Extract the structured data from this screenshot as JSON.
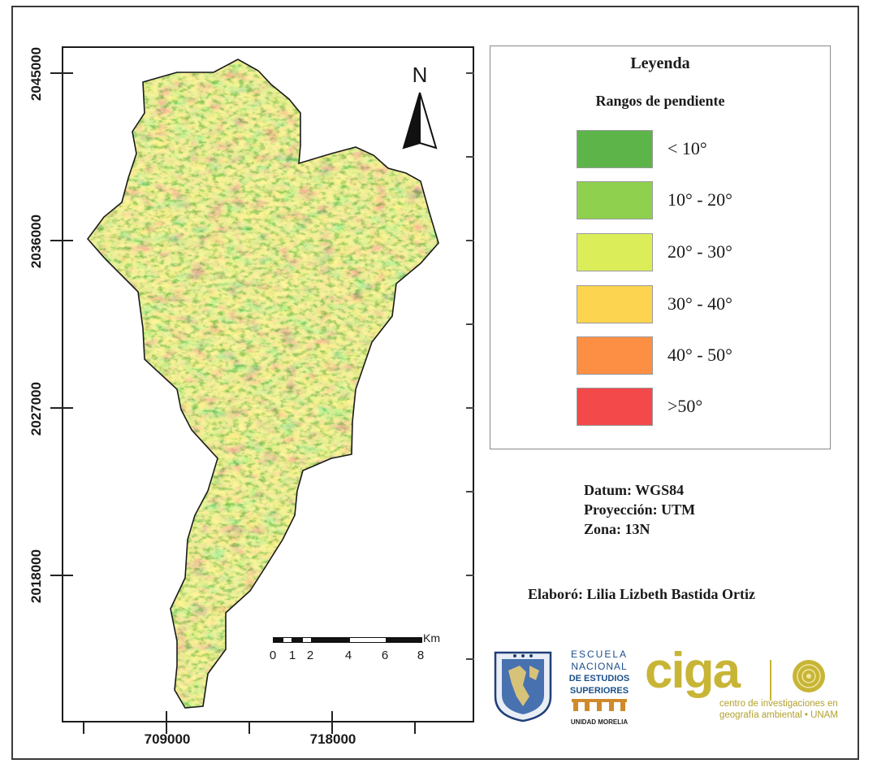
{
  "map": {
    "y_ticks": [
      "2045000",
      "2036000",
      "2027000",
      "2018000"
    ],
    "x_ticks": [
      "709000",
      "718000"
    ],
    "north_label": "N",
    "scale": {
      "labels": [
        "0",
        "1",
        "2",
        "4",
        "6",
        "8"
      ],
      "unit": "Km"
    }
  },
  "legend": {
    "title": "Leyenda",
    "subtitle": "Rangos de pendiente",
    "classes": [
      {
        "label": "< 10°",
        "color": "#5db54a"
      },
      {
        "label": "10° - 20°",
        "color": "#8fd14f"
      },
      {
        "label": "20° - 30°",
        "color": "#dbee5a"
      },
      {
        "label": "30° - 40°",
        "color": "#fdd44f"
      },
      {
        "label": "40° - 50°",
        "color": "#fd8f45"
      },
      {
        "label": ">50°",
        "color": "#f4494a"
      }
    ]
  },
  "projection": {
    "datum": "Datum: WGS84",
    "projection": "Proyección: UTM",
    "zone": "Zona: 13N"
  },
  "credits": {
    "author": "Elaboró: Lilia Lizbeth Bastida Ortiz"
  },
  "logos": {
    "enes": [
      "ESCUELA",
      "NACIONAL",
      "DE ESTUDIOS",
      "SUPERIORES",
      "UNIDAD MORELIA"
    ],
    "ciga_word": "ciga",
    "ciga_text": [
      "centro de investigaciones en",
      "geografía ambiental • UNAM"
    ]
  }
}
